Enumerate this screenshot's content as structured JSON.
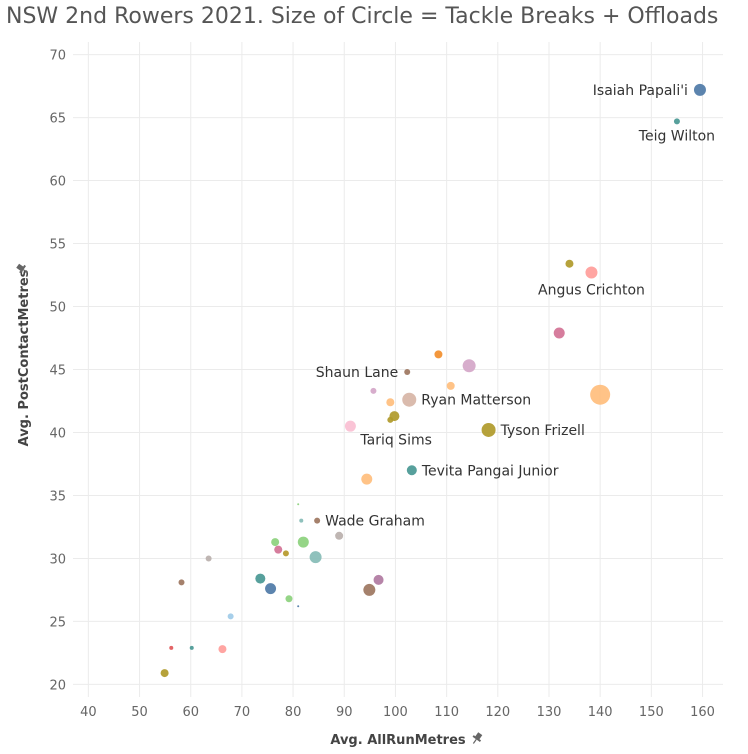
{
  "chart_data": {
    "type": "scatter",
    "title": "NSW 2nd Rowers 2021. Size of Circle = Tackle Breaks + Offloads",
    "xlabel": "Avg. AllRunMetres",
    "ylabel": "Avg. PostContactMetres",
    "xlim": [
      37,
      164
    ],
    "ylim": [
      19,
      71
    ],
    "xticks": [
      40,
      50,
      60,
      70,
      80,
      90,
      100,
      110,
      120,
      130,
      140,
      150,
      160
    ],
    "yticks": [
      20,
      25,
      30,
      35,
      40,
      45,
      50,
      55,
      60,
      65,
      70
    ],
    "grid": true,
    "axis_pin_icon": "pin-icon",
    "points": [
      {
        "x": 159.5,
        "y": 67.2,
        "size": 6,
        "color": "#4e79a7",
        "label": "Isaiah Papali'i",
        "label_pos": "left"
      },
      {
        "x": 155,
        "y": 64.7,
        "size": 3,
        "color": "#499894",
        "label": "Teig Wilton",
        "label_pos": "below"
      },
      {
        "x": 134,
        "y": 53.4,
        "size": 4,
        "color": "#b09a2a",
        "label": "",
        "label_pos": ""
      },
      {
        "x": 138.3,
        "y": 52.7,
        "size": 6,
        "color": "#ff9d9a",
        "label": "Angus Crichton",
        "label_pos": "below"
      },
      {
        "x": 132,
        "y": 47.9,
        "size": 5.5,
        "color": "#d37295",
        "label": "",
        "label_pos": ""
      },
      {
        "x": 108.4,
        "y": 46.2,
        "size": 4,
        "color": "#f28e2b",
        "label": "",
        "label_pos": ""
      },
      {
        "x": 114.4,
        "y": 45.3,
        "size": 6.5,
        "color": "#d4a6c8",
        "label": "",
        "label_pos": ""
      },
      {
        "x": 102.3,
        "y": 44.8,
        "size": 3,
        "color": "#9d7660",
        "label": "Shaun Lane",
        "label_pos": "left"
      },
      {
        "x": 95.7,
        "y": 43.3,
        "size": 3,
        "color": "#d4a6c8",
        "label": "",
        "label_pos": ""
      },
      {
        "x": 110.8,
        "y": 43.7,
        "size": 4,
        "color": "#ffbe7d",
        "label": "",
        "label_pos": ""
      },
      {
        "x": 99,
        "y": 42.4,
        "size": 4,
        "color": "#ffbe7d",
        "label": "",
        "label_pos": ""
      },
      {
        "x": 102.7,
        "y": 42.6,
        "size": 7,
        "color": "#d7b5a6",
        "label": "Ryan Matterson",
        "label_pos": "right"
      },
      {
        "x": 140,
        "y": 43,
        "size": 10,
        "color": "#ffbe7d",
        "label": "",
        "label_pos": ""
      },
      {
        "x": 99.8,
        "y": 41.3,
        "size": 5,
        "color": "#b09a2a",
        "label": "",
        "label_pos": ""
      },
      {
        "x": 99,
        "y": 41,
        "size": 3,
        "color": "#b09a2a",
        "label": "",
        "label_pos": ""
      },
      {
        "x": 91.2,
        "y": 40.5,
        "size": 5.5,
        "color": "#fabfd2",
        "label": "Tariq Sims",
        "label_pos": "below-right"
      },
      {
        "x": 118.2,
        "y": 40.2,
        "size": 7,
        "color": "#b09a2a",
        "label": "Tyson Frizell",
        "label_pos": "right"
      },
      {
        "x": 103.2,
        "y": 37,
        "size": 5,
        "color": "#499894",
        "label": "Tevita Pangai Junior",
        "label_pos": "right"
      },
      {
        "x": 94.4,
        "y": 36.3,
        "size": 5.5,
        "color": "#ffbe7d",
        "label": "",
        "label_pos": ""
      },
      {
        "x": 81,
        "y": 34.3,
        "size": 1,
        "color": "#8cd17d",
        "label": "",
        "label_pos": ""
      },
      {
        "x": 84.7,
        "y": 33,
        "size": 3,
        "color": "#9d7660",
        "label": "Wade Graham",
        "label_pos": "right"
      },
      {
        "x": 81.6,
        "y": 33,
        "size": 2,
        "color": "#86bcb6",
        "label": "",
        "label_pos": ""
      },
      {
        "x": 89,
        "y": 31.8,
        "size": 4,
        "color": "#bab0ac",
        "label": "",
        "label_pos": ""
      },
      {
        "x": 76.5,
        "y": 31.3,
        "size": 4,
        "color": "#8cd17d",
        "label": "",
        "label_pos": ""
      },
      {
        "x": 82,
        "y": 31.3,
        "size": 5.5,
        "color": "#8cd17d",
        "label": "",
        "label_pos": ""
      },
      {
        "x": 77.1,
        "y": 30.7,
        "size": 4,
        "color": "#d37295",
        "label": "",
        "label_pos": ""
      },
      {
        "x": 78.6,
        "y": 30.4,
        "size": 3,
        "color": "#b6992d",
        "label": "",
        "label_pos": ""
      },
      {
        "x": 84.4,
        "y": 30.1,
        "size": 6,
        "color": "#86bcb6",
        "label": "",
        "label_pos": ""
      },
      {
        "x": 63.5,
        "y": 30,
        "size": 3,
        "color": "#bab0ac",
        "label": "",
        "label_pos": ""
      },
      {
        "x": 73.6,
        "y": 28.4,
        "size": 5,
        "color": "#499894",
        "label": "",
        "label_pos": ""
      },
      {
        "x": 96.7,
        "y": 28.3,
        "size": 5,
        "color": "#b07aa1",
        "label": "",
        "label_pos": ""
      },
      {
        "x": 58.2,
        "y": 28.1,
        "size": 3,
        "color": "#9d7660",
        "label": "",
        "label_pos": ""
      },
      {
        "x": 75.6,
        "y": 27.6,
        "size": 5.5,
        "color": "#4e79a7",
        "label": "",
        "label_pos": ""
      },
      {
        "x": 94.9,
        "y": 27.5,
        "size": 6,
        "color": "#9d7660",
        "label": "",
        "label_pos": ""
      },
      {
        "x": 79.2,
        "y": 26.8,
        "size": 3.5,
        "color": "#8cd17d",
        "label": "",
        "label_pos": ""
      },
      {
        "x": 81,
        "y": 26.2,
        "size": 1,
        "color": "#4e79a7",
        "label": "",
        "label_pos": ""
      },
      {
        "x": 67.8,
        "y": 25.4,
        "size": 3,
        "color": "#a0cbe8",
        "label": "",
        "label_pos": ""
      },
      {
        "x": 56.2,
        "y": 22.9,
        "size": 2,
        "color": "#e15759",
        "label": "",
        "label_pos": ""
      },
      {
        "x": 60.2,
        "y": 22.9,
        "size": 2,
        "color": "#499894",
        "label": "",
        "label_pos": ""
      },
      {
        "x": 66.2,
        "y": 22.8,
        "size": 4,
        "color": "#ff9d9a",
        "label": "",
        "label_pos": ""
      },
      {
        "x": 54.9,
        "y": 20.9,
        "size": 4,
        "color": "#b09a2a",
        "label": "",
        "label_pos": ""
      }
    ]
  }
}
